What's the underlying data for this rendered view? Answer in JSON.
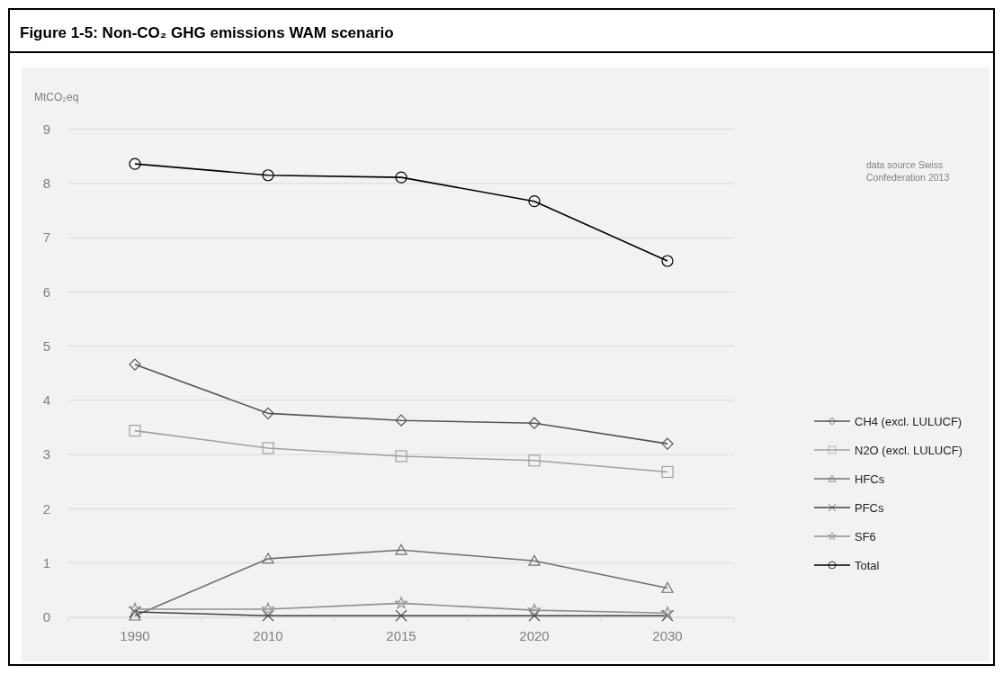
{
  "chart_data": {
    "type": "line",
    "title": "Figure 1-5: Non-CO₂ GHG emissions WAM scenario",
    "ylabel": "MtCO₂eq",
    "annotations": [
      "data source Swiss Confederation 2013"
    ],
    "categories": [
      "1990",
      "2010",
      "2015",
      "2020",
      "2030"
    ],
    "ylim": [
      0,
      9
    ],
    "yticks": [
      0,
      1,
      2,
      3,
      4,
      5,
      6,
      7,
      8,
      9
    ],
    "grid": "y",
    "legend": "right",
    "line_style": "solid",
    "series": [
      {
        "name": "CH4 (excl. LULUCF)",
        "color": "#555555",
        "marker": "diamond",
        "values": [
          4.66,
          3.76,
          3.63,
          3.58,
          3.2
        ]
      },
      {
        "name": "N2O (excl. LULUCF)",
        "color": "#a0a0a0",
        "marker": "square",
        "values": [
          3.44,
          3.12,
          2.97,
          2.89,
          2.68
        ]
      },
      {
        "name": "HFCs",
        "color": "#707070",
        "marker": "triangle",
        "values": [
          0.03,
          1.08,
          1.24,
          1.04,
          0.54
        ]
      },
      {
        "name": "PFCs",
        "color": "#404040",
        "marker": "cross",
        "values": [
          0.1,
          0.03,
          0.03,
          0.03,
          0.03
        ]
      },
      {
        "name": "SF6",
        "color": "#909090",
        "marker": "star",
        "values": [
          0.15,
          0.15,
          0.26,
          0.13,
          0.08
        ]
      },
      {
        "name": "Total",
        "color": "#000000",
        "marker": "circle",
        "values": [
          8.36,
          8.15,
          8.11,
          7.67,
          6.57
        ]
      }
    ]
  }
}
